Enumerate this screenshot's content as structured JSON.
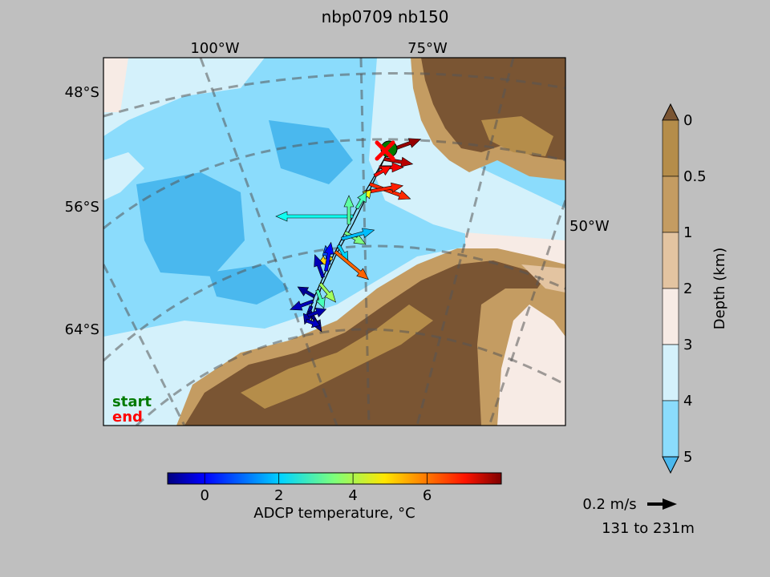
{
  "title": "nbp0709 nb150",
  "lon_labels": [
    "100°W",
    "75°W"
  ],
  "lon_label_right": "50°W",
  "lat_labels": [
    "48°S",
    "56°S",
    "64°S"
  ],
  "legend": {
    "start_label": "start",
    "end_label": "end",
    "start_color": "#007a00",
    "end_color": "#ff0000"
  },
  "depth_colorbar": {
    "label": "Depth (km)",
    "ticks": [
      "0",
      "0.5",
      "1",
      "2",
      "3",
      "4",
      "5"
    ],
    "colors": [
      "#b58d4a",
      "#c49c62",
      "#e3c4a1",
      "#f7ebe5",
      "#d4f1fb",
      "#8bdcfc",
      "#4ab8ee"
    ],
    "over_color": "#7a5533"
  },
  "temp_colorbar": {
    "label": "ADCP temperature, °C",
    "ticks": [
      "0",
      "2",
      "4",
      "6"
    ],
    "range": [
      -1,
      8
    ],
    "tick_values": [
      0,
      2,
      4,
      6
    ]
  },
  "reference_vector": {
    "label": "0.2 m/s",
    "depth_range": "131 to 231m"
  },
  "track": {
    "start": {
      "lon": -63.5,
      "lat": -54.5
    },
    "end": {
      "lon": -64.5,
      "lat": -54.8
    }
  },
  "vectors": [
    {
      "t": 7.8,
      "dir": 20,
      "len": 0.7
    },
    {
      "t": 7.5,
      "dir": -10,
      "len": 0.6
    },
    {
      "t": 7.0,
      "dir": 0,
      "len": 0.5
    },
    {
      "t": 6.8,
      "dir": 30,
      "len": 0.4
    },
    {
      "t": 6.5,
      "dir": -20,
      "len": 0.9
    },
    {
      "t": 6.6,
      "dir": 10,
      "len": 0.8
    },
    {
      "t": 4.5,
      "dir": 45,
      "len": 0.3
    },
    {
      "t": 3.0,
      "dir": 60,
      "len": 0.4
    },
    {
      "t": 2.5,
      "dir": 180,
      "len": 1.6
    },
    {
      "t": 3.2,
      "dir": 90,
      "len": 0.6
    },
    {
      "t": 3.5,
      "dir": -30,
      "len": 0.5
    },
    {
      "t": 1.8,
      "dir": 15,
      "len": 0.7
    },
    {
      "t": 2.0,
      "dir": -60,
      "len": 0.4
    },
    {
      "t": 6.0,
      "dir": -40,
      "len": 0.9
    },
    {
      "t": 5.0,
      "dir": 200,
      "len": 0.3
    },
    {
      "t": 0.8,
      "dir": 100,
      "len": 0.4
    },
    {
      "t": 0.2,
      "dir": 80,
      "len": 0.6
    },
    {
      "t": -0.5,
      "dir": 110,
      "len": 0.5
    },
    {
      "t": 3.8,
      "dir": -50,
      "len": 0.5
    },
    {
      "t": 3.0,
      "dir": -70,
      "len": 0.4
    },
    {
      "t": -0.8,
      "dir": 150,
      "len": 0.4
    },
    {
      "t": -0.5,
      "dir": 200,
      "len": 0.5
    },
    {
      "t": -0.7,
      "dir": 250,
      "len": 0.4
    },
    {
      "t": -0.9,
      "dir": 300,
      "len": 0.5
    },
    {
      "t": -0.6,
      "dir": 20,
      "len": 0.4
    },
    {
      "t": -0.4,
      "dir": 340,
      "len": 0.3
    }
  ]
}
